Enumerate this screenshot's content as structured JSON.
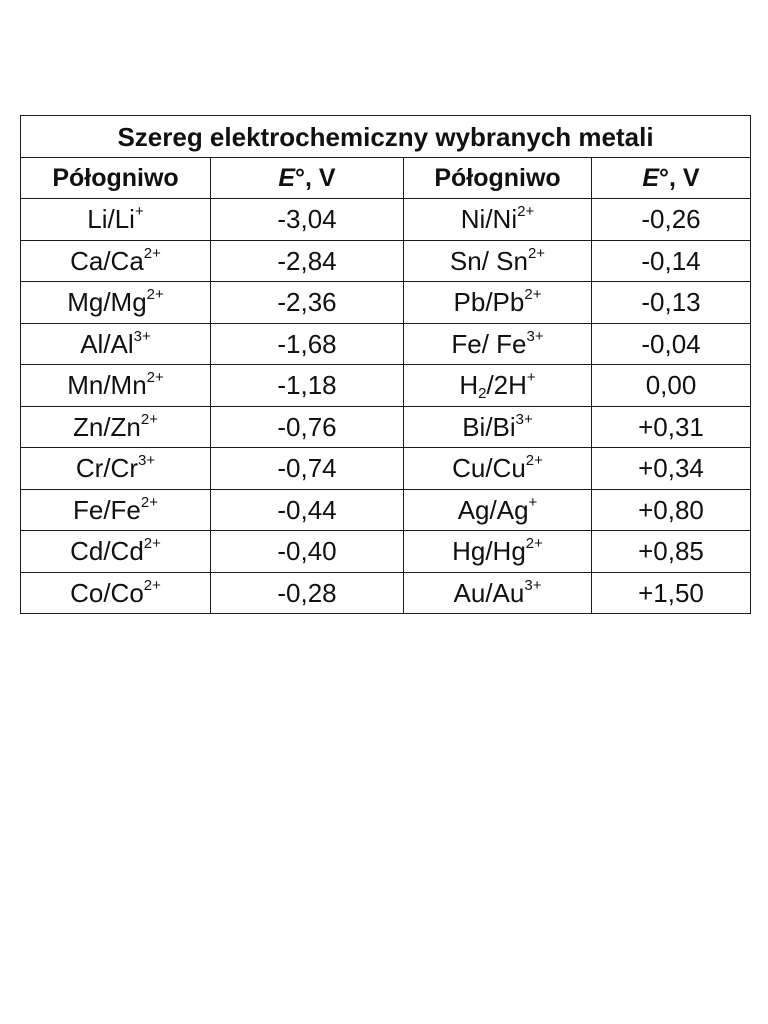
{
  "table": {
    "title": "Szereg elektrochemiczny wybranych metali",
    "headers": {
      "col1": "Półogniwo",
      "col2_symbol": "E",
      "col2_rest": "°, V",
      "col3": "Półogniwo",
      "col4_symbol": "E",
      "col4_rest": "°, V"
    },
    "rows": [
      {
        "left": {
          "metal": "Li/Li",
          "charge": "+",
          "value": "-3,04"
        },
        "right": {
          "metal": "Ni/Ni",
          "charge": "2+",
          "value": "-0,26"
        }
      },
      {
        "left": {
          "metal": "Ca/Ca",
          "charge": "2+",
          "value": "-2,84"
        },
        "right": {
          "metal": "Sn/ Sn",
          "charge": "2+",
          "value": "-0,14"
        }
      },
      {
        "left": {
          "metal": "Mg/Mg",
          "charge": "2+",
          "value": "-2,36"
        },
        "right": {
          "metal": "Pb/Pb",
          "charge": "2+",
          "value": "-0,13"
        }
      },
      {
        "left": {
          "metal": "Al/Al",
          "charge": "3+",
          "value": "-1,68"
        },
        "right": {
          "metal": "Fe/ Fe",
          "charge": "3+",
          "value": "-0,04"
        }
      },
      {
        "left": {
          "metal": "Mn/Mn",
          "charge": "2+",
          "value": "-1,18"
        },
        "right": {
          "metal_pre": "H",
          "subscript": "2",
          "metal_post": "/2H",
          "charge": "+",
          "value": "0,00"
        }
      },
      {
        "left": {
          "metal": "Zn/Zn",
          "charge": "2+",
          "value": "-0,76"
        },
        "right": {
          "metal": "Bi/Bi",
          "charge": "3+",
          "value": "+0,31"
        }
      },
      {
        "left": {
          "metal": "Cr/Cr",
          "charge": "3+",
          "value": "-0,74"
        },
        "right": {
          "metal": "Cu/Cu",
          "charge": "2+",
          "value": "+0,34"
        }
      },
      {
        "left": {
          "metal": "Fe/Fe",
          "charge": "2+",
          "value": "-0,44"
        },
        "right": {
          "metal": "Ag/Ag",
          "charge": "+",
          "value": "+0,80"
        }
      },
      {
        "left": {
          "metal": "Cd/Cd",
          "charge": "2+",
          "value": "-0,40"
        },
        "right": {
          "metal": "Hg/Hg",
          "charge": "2+",
          "value": "+0,85"
        }
      },
      {
        "left": {
          "metal": "Co/Co",
          "charge": "2+",
          "value": "-0,28"
        },
        "right": {
          "metal": "Au/Au",
          "charge": "3+",
          "value": "+1,50"
        }
      }
    ]
  }
}
